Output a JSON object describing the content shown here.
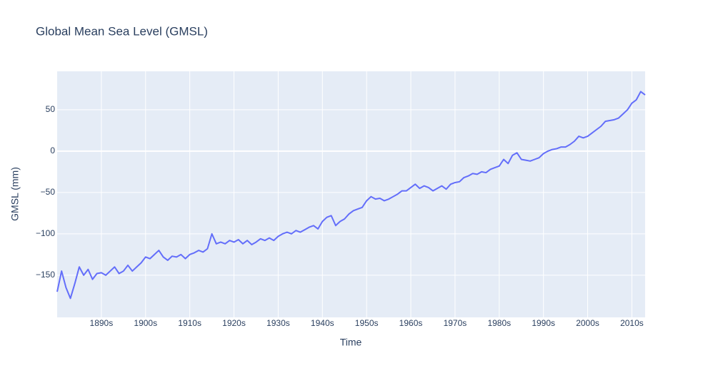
{
  "chart_data": {
    "type": "line",
    "title": "Global Mean Sea Level (GMSL)",
    "xlabel": "Time",
    "ylabel": "GMSL (mm)",
    "x": [
      1880,
      1881,
      1882,
      1883,
      1884,
      1885,
      1886,
      1887,
      1888,
      1889,
      1890,
      1891,
      1892,
      1893,
      1894,
      1895,
      1896,
      1897,
      1898,
      1899,
      1900,
      1901,
      1902,
      1903,
      1904,
      1905,
      1906,
      1907,
      1908,
      1909,
      1910,
      1911,
      1912,
      1913,
      1914,
      1915,
      1916,
      1917,
      1918,
      1919,
      1920,
      1921,
      1922,
      1923,
      1924,
      1925,
      1926,
      1927,
      1928,
      1929,
      1930,
      1931,
      1932,
      1933,
      1934,
      1935,
      1936,
      1937,
      1938,
      1939,
      1940,
      1941,
      1942,
      1943,
      1944,
      1945,
      1946,
      1947,
      1948,
      1949,
      1950,
      1951,
      1952,
      1953,
      1954,
      1955,
      1956,
      1957,
      1958,
      1959,
      1960,
      1961,
      1962,
      1963,
      1964,
      1965,
      1966,
      1967,
      1968,
      1969,
      1970,
      1971,
      1972,
      1973,
      1974,
      1975,
      1976,
      1977,
      1978,
      1979,
      1980,
      1981,
      1982,
      1983,
      1984,
      1985,
      1986,
      1987,
      1988,
      1989,
      1990,
      1991,
      1992,
      1993,
      1994,
      1995,
      1996,
      1997,
      1998,
      1999,
      2000,
      2001,
      2002,
      2003,
      2004,
      2005,
      2006,
      2007,
      2008,
      2009,
      2010,
      2011,
      2012,
      2013
    ],
    "series": [
      {
        "name": "GMSL",
        "color": "#636efa",
        "values": [
          -170,
          -145,
          -165,
          -178,
          -160,
          -140,
          -150,
          -143,
          -155,
          -148,
          -147,
          -150,
          -145,
          -140,
          -148,
          -145,
          -138,
          -145,
          -140,
          -135,
          -128,
          -130,
          -125,
          -120,
          -128,
          -132,
          -127,
          -128,
          -125,
          -130,
          -125,
          -123,
          -120,
          -122,
          -118,
          -100,
          -112,
          -110,
          -112,
          -108,
          -110,
          -107,
          -112,
          -108,
          -113,
          -110,
          -106,
          -108,
          -105,
          -108,
          -103,
          -100,
          -98,
          -100,
          -96,
          -98,
          -95,
          -92,
          -90,
          -94,
          -85,
          -80,
          -78,
          -90,
          -85,
          -82,
          -76,
          -72,
          -70,
          -68,
          -60,
          -55,
          -58,
          -57,
          -60,
          -58,
          -55,
          -52,
          -48,
          -48,
          -44,
          -40,
          -45,
          -42,
          -44,
          -48,
          -45,
          -42,
          -46,
          -40,
          -38,
          -37,
          -32,
          -30,
          -27,
          -28,
          -25,
          -26,
          -22,
          -20,
          -18,
          -10,
          -15,
          -5,
          -2,
          -10,
          -11,
          -12,
          -10,
          -8,
          -3,
          0,
          2,
          3,
          5,
          5,
          8,
          12,
          18,
          16,
          18,
          22,
          26,
          30,
          36,
          37,
          38,
          40,
          45,
          50,
          58,
          62,
          72,
          68
        ]
      }
    ],
    "xlim": [
      1880,
      2013
    ],
    "xticks": [
      {
        "value": 1890,
        "label": "1890s"
      },
      {
        "value": 1900,
        "label": "1900s"
      },
      {
        "value": 1910,
        "label": "1910s"
      },
      {
        "value": 1920,
        "label": "1920s"
      },
      {
        "value": 1930,
        "label": "1930s"
      },
      {
        "value": 1940,
        "label": "1940s"
      },
      {
        "value": 1950,
        "label": "1950s"
      },
      {
        "value": 1960,
        "label": "1960s"
      },
      {
        "value": 1970,
        "label": "1970s"
      },
      {
        "value": 1980,
        "label": "1980s"
      },
      {
        "value": 1990,
        "label": "1990s"
      },
      {
        "value": 2000,
        "label": "2000s"
      },
      {
        "value": 2010,
        "label": "2010s"
      }
    ],
    "ylim": [
      -201,
      96.5
    ],
    "yticks": [
      {
        "value": -150,
        "label": "−150"
      },
      {
        "value": -100,
        "label": "−100"
      },
      {
        "value": -50,
        "label": "−50"
      },
      0,
      50
    ],
    "grid": true
  }
}
